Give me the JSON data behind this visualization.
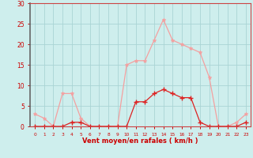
{
  "x": [
    0,
    1,
    2,
    3,
    4,
    5,
    6,
    7,
    8,
    9,
    10,
    11,
    12,
    13,
    14,
    15,
    16,
    17,
    18,
    19,
    20,
    21,
    22,
    23
  ],
  "rafales": [
    3,
    2,
    0,
    8,
    8,
    2,
    0,
    0,
    0,
    0,
    15,
    16,
    16,
    21,
    26,
    21,
    20,
    19,
    18,
    12,
    0,
    0,
    1,
    3
  ],
  "moyen": [
    0,
    0,
    0,
    0,
    1,
    1,
    0,
    0,
    0,
    0,
    0,
    6,
    6,
    8,
    9,
    8,
    7,
    7,
    1,
    0,
    0,
    0,
    0,
    1
  ],
  "color_rafales": "#f4a0a0",
  "color_moyen": "#dd2222",
  "bg_color": "#ceeeed",
  "grid_color": "#aad4d4",
  "xlabel": "Vent moyen/en rafales ( km/h )",
  "xlabel_color": "#cc0000",
  "tick_color": "#cc0000",
  "spine_color": "#cc4444",
  "ylim": [
    0,
    30
  ],
  "yticks": [
    0,
    5,
    10,
    15,
    20,
    25,
    30
  ],
  "xlim": [
    -0.5,
    23.5
  ]
}
